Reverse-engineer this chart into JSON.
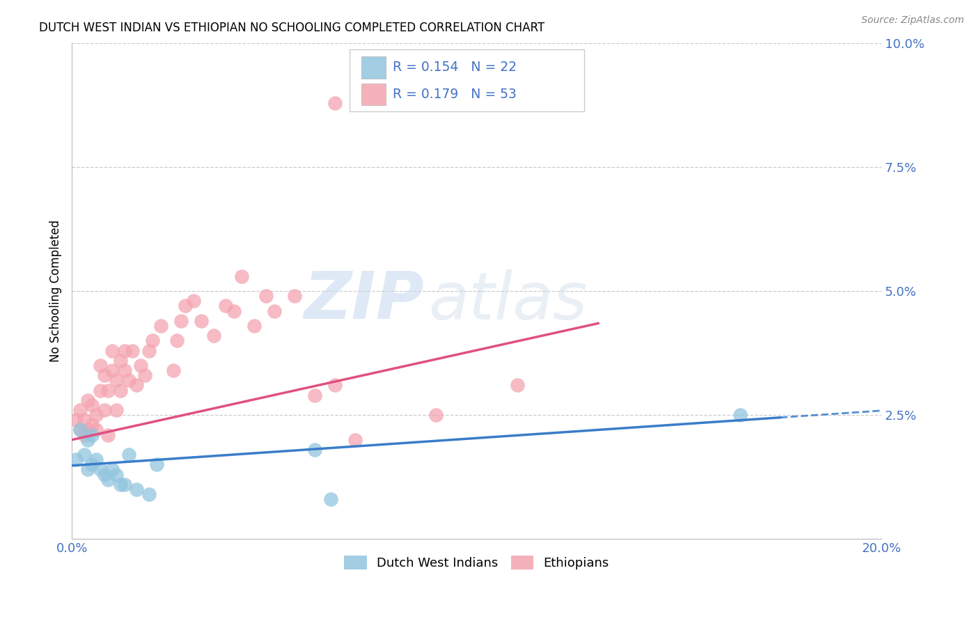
{
  "title": "DUTCH WEST INDIAN VS ETHIOPIAN NO SCHOOLING COMPLETED CORRELATION CHART",
  "source": "Source: ZipAtlas.com",
  "ylabel": "No Schooling Completed",
  "xlim": [
    0.0,
    0.2
  ],
  "ylim": [
    0.0,
    0.1
  ],
  "xticks": [
    0.0,
    0.05,
    0.1,
    0.15,
    0.2
  ],
  "yticks": [
    0.0,
    0.025,
    0.05,
    0.075,
    0.1
  ],
  "blue_color": "#92c5de",
  "pink_color": "#f4a4b0",
  "blue_line_color": "#3a7dc9",
  "pink_line_color": "#e05080",
  "watermark_zip": "ZIP",
  "watermark_atlas": "atlas",
  "dutch_points_x": [
    0.001,
    0.002,
    0.003,
    0.004,
    0.004,
    0.005,
    0.005,
    0.006,
    0.007,
    0.008,
    0.009,
    0.01,
    0.011,
    0.012,
    0.013,
    0.014,
    0.016,
    0.019,
    0.021,
    0.06,
    0.064,
    0.165
  ],
  "dutch_points_y": [
    0.016,
    0.022,
    0.017,
    0.014,
    0.02,
    0.015,
    0.021,
    0.016,
    0.014,
    0.013,
    0.012,
    0.014,
    0.013,
    0.011,
    0.011,
    0.017,
    0.01,
    0.009,
    0.015,
    0.018,
    0.008,
    0.025
  ],
  "ethiopian_points_x": [
    0.001,
    0.002,
    0.002,
    0.003,
    0.003,
    0.004,
    0.004,
    0.005,
    0.005,
    0.006,
    0.006,
    0.007,
    0.007,
    0.008,
    0.008,
    0.009,
    0.009,
    0.01,
    0.01,
    0.011,
    0.011,
    0.012,
    0.012,
    0.013,
    0.013,
    0.014,
    0.015,
    0.016,
    0.017,
    0.018,
    0.019,
    0.02,
    0.022,
    0.025,
    0.026,
    0.027,
    0.028,
    0.03,
    0.032,
    0.035,
    0.038,
    0.04,
    0.042,
    0.045,
    0.048,
    0.05,
    0.055,
    0.06,
    0.065,
    0.07,
    0.09,
    0.11,
    0.065
  ],
  "ethiopian_points_y": [
    0.024,
    0.022,
    0.026,
    0.021,
    0.024,
    0.022,
    0.028,
    0.023,
    0.027,
    0.022,
    0.025,
    0.03,
    0.035,
    0.026,
    0.033,
    0.021,
    0.03,
    0.034,
    0.038,
    0.026,
    0.032,
    0.036,
    0.03,
    0.034,
    0.038,
    0.032,
    0.038,
    0.031,
    0.035,
    0.033,
    0.038,
    0.04,
    0.043,
    0.034,
    0.04,
    0.044,
    0.047,
    0.048,
    0.044,
    0.041,
    0.047,
    0.046,
    0.053,
    0.043,
    0.049,
    0.046,
    0.049,
    0.029,
    0.031,
    0.02,
    0.025,
    0.031,
    0.088
  ],
  "blue_trend_x0": 0.0,
  "blue_trend_y0": 0.0148,
  "blue_trend_x1": 0.175,
  "blue_trend_y1": 0.0245,
  "pink_trend_x0": 0.0,
  "pink_trend_y0": 0.02,
  "pink_trend_x1": 0.13,
  "pink_trend_y1": 0.0435,
  "legend_r1": "R = 0.154",
  "legend_n1": "N = 22",
  "legend_r2": "R = 0.179",
  "legend_n2": "N = 53"
}
